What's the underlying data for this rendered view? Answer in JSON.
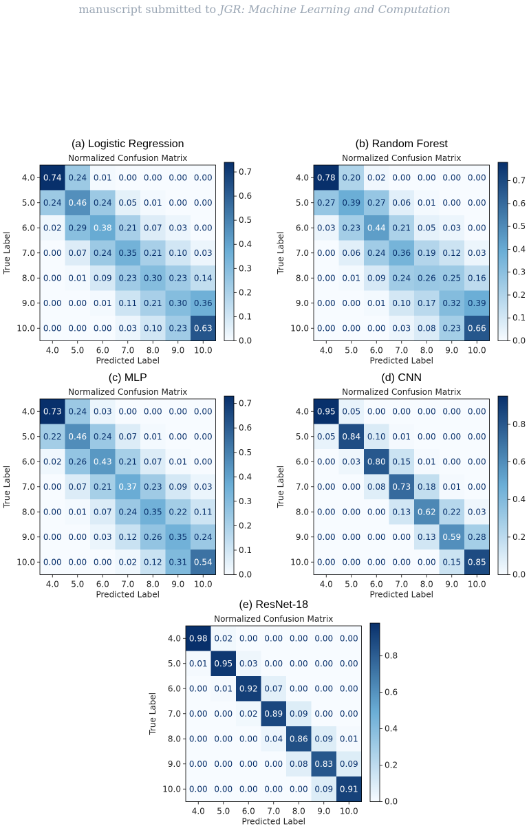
{
  "header": {
    "prefix": "manuscript submitted to",
    "journal": "JGR: Machine Learning and Computation"
  },
  "colormap": {
    "low": "#f7fbff",
    "mid": "#6baed6",
    "high": "#08306b"
  },
  "chart_data": [
    {
      "type": "heatmap",
      "panel_title": "(a) Logistic Regression",
      "title": "Normalized Confusion Matrix",
      "xlabel": "Predicted Label",
      "ylabel": "True Label",
      "x_categories": [
        "4.0",
        "5.0",
        "6.0",
        "7.0",
        "8.0",
        "9.0",
        "10.0"
      ],
      "y_categories": [
        "4.0",
        "5.0",
        "6.0",
        "7.0",
        "8.0",
        "9.0",
        "10.0"
      ],
      "values": [
        [
          0.74,
          0.24,
          0.01,
          0.0,
          0.0,
          0.0,
          0.0
        ],
        [
          0.24,
          0.46,
          0.24,
          0.05,
          0.01,
          0.0,
          0.0
        ],
        [
          0.02,
          0.29,
          0.38,
          0.21,
          0.07,
          0.03,
          0.0
        ],
        [
          0.0,
          0.07,
          0.24,
          0.35,
          0.21,
          0.1,
          0.03
        ],
        [
          0.0,
          0.01,
          0.09,
          0.23,
          0.3,
          0.23,
          0.14
        ],
        [
          0.0,
          0.0,
          0.01,
          0.11,
          0.21,
          0.3,
          0.36
        ],
        [
          0.0,
          0.0,
          0.0,
          0.03,
          0.1,
          0.23,
          0.63
        ]
      ],
      "colorbar": {
        "min": 0,
        "max": 0.74,
        "ticks": [
          "0.0",
          "0.1",
          "0.2",
          "0.3",
          "0.4",
          "0.5",
          "0.6",
          "0.7"
        ]
      }
    },
    {
      "type": "heatmap",
      "panel_title": "(b) Random Forest",
      "title": "Normalized Confusion Matrix",
      "xlabel": "Predicted Label",
      "ylabel": "True Label",
      "x_categories": [
        "4.0",
        "5.0",
        "6.0",
        "7.0",
        "8.0",
        "9.0",
        "10.0"
      ],
      "y_categories": [
        "4.0",
        "5.0",
        "6.0",
        "7.0",
        "8.0",
        "9.0",
        "10.0"
      ],
      "values": [
        [
          0.78,
          0.2,
          0.02,
          0.0,
          0.0,
          0.0,
          0.0
        ],
        [
          0.27,
          0.39,
          0.27,
          0.06,
          0.01,
          0.0,
          0.0
        ],
        [
          0.03,
          0.23,
          0.44,
          0.21,
          0.05,
          0.03,
          0.0
        ],
        [
          0.0,
          0.06,
          0.24,
          0.36,
          0.19,
          0.12,
          0.03
        ],
        [
          0.0,
          0.01,
          0.09,
          0.24,
          0.26,
          0.25,
          0.16
        ],
        [
          0.0,
          0.0,
          0.01,
          0.1,
          0.17,
          0.32,
          0.39
        ],
        [
          0.0,
          0.0,
          0.0,
          0.03,
          0.08,
          0.23,
          0.66
        ]
      ],
      "colorbar": {
        "min": 0,
        "max": 0.78,
        "ticks": [
          "0.0",
          "0.1",
          "0.2",
          "0.3",
          "0.4",
          "0.5",
          "0.6",
          "0.7"
        ]
      }
    },
    {
      "type": "heatmap",
      "panel_title": "(c) MLP",
      "title": "Normalized Confusion Matrix",
      "xlabel": "Predicted Label",
      "ylabel": "True Label",
      "x_categories": [
        "4.0",
        "5.0",
        "6.0",
        "7.0",
        "8.0",
        "9.0",
        "10.0"
      ],
      "y_categories": [
        "4.0",
        "5.0",
        "6.0",
        "7.0",
        "8.0",
        "9.0",
        "10.0"
      ],
      "values": [
        [
          0.73,
          0.24,
          0.03,
          0.0,
          0.0,
          0.0,
          0.0
        ],
        [
          0.22,
          0.46,
          0.24,
          0.07,
          0.01,
          0.0,
          0.0
        ],
        [
          0.02,
          0.26,
          0.43,
          0.21,
          0.07,
          0.01,
          0.0
        ],
        [
          0.0,
          0.07,
          0.21,
          0.37,
          0.23,
          0.09,
          0.03
        ],
        [
          0.0,
          0.01,
          0.07,
          0.24,
          0.35,
          0.22,
          0.11
        ],
        [
          0.0,
          0.0,
          0.03,
          0.12,
          0.26,
          0.35,
          0.24
        ],
        [
          0.0,
          0.0,
          0.0,
          0.02,
          0.12,
          0.31,
          0.54
        ]
      ],
      "colorbar": {
        "min": 0,
        "max": 0.73,
        "ticks": [
          "0.0",
          "0.1",
          "0.2",
          "0.3",
          "0.4",
          "0.5",
          "0.6",
          "0.7"
        ]
      }
    },
    {
      "type": "heatmap",
      "panel_title": "(d) CNN",
      "title": "Normalized Confusion Matrix",
      "xlabel": "Predicted Label",
      "ylabel": "True Label",
      "x_categories": [
        "4.0",
        "5.0",
        "6.0",
        "7.0",
        "8.0",
        "9.0",
        "10.0"
      ],
      "y_categories": [
        "4.0",
        "5.0",
        "6.0",
        "7.0",
        "8.0",
        "9.0",
        "10.0"
      ],
      "values": [
        [
          0.95,
          0.05,
          0.0,
          0.0,
          0.0,
          0.0,
          0.0
        ],
        [
          0.05,
          0.84,
          0.1,
          0.01,
          0.0,
          0.0,
          0.0
        ],
        [
          0.0,
          0.03,
          0.8,
          0.15,
          0.01,
          0.0,
          0.0
        ],
        [
          0.0,
          0.0,
          0.08,
          0.73,
          0.18,
          0.01,
          0.0
        ],
        [
          0.0,
          0.0,
          0.0,
          0.13,
          0.62,
          0.22,
          0.03
        ],
        [
          0.0,
          0.0,
          0.0,
          0.0,
          0.13,
          0.59,
          0.28
        ],
        [
          0.0,
          0.0,
          0.0,
          0.0,
          0.0,
          0.15,
          0.85
        ]
      ],
      "colorbar": {
        "min": 0,
        "max": 0.95,
        "ticks": [
          "0.0",
          "0.2",
          "0.4",
          "0.6",
          "0.8"
        ]
      }
    },
    {
      "type": "heatmap",
      "panel_title": "(e) ResNet-18",
      "title": "Normalized Confusion Matrix",
      "xlabel": "Predicted Label",
      "ylabel": "True Label",
      "x_categories": [
        "4.0",
        "5.0",
        "6.0",
        "7.0",
        "8.0",
        "9.0",
        "10.0"
      ],
      "y_categories": [
        "4.0",
        "5.0",
        "6.0",
        "7.0",
        "8.0",
        "9.0",
        "10.0"
      ],
      "values": [
        [
          0.98,
          0.02,
          0.0,
          0.0,
          0.0,
          0.0,
          0.0
        ],
        [
          0.01,
          0.95,
          0.03,
          0.0,
          0.0,
          0.0,
          0.0
        ],
        [
          0.0,
          0.01,
          0.92,
          0.07,
          0.0,
          0.0,
          0.0
        ],
        [
          0.0,
          0.0,
          0.02,
          0.89,
          0.09,
          0.0,
          0.0
        ],
        [
          0.0,
          0.0,
          0.0,
          0.04,
          0.86,
          0.09,
          0.01
        ],
        [
          0.0,
          0.0,
          0.0,
          0.0,
          0.08,
          0.83,
          0.09
        ],
        [
          0.0,
          0.0,
          0.0,
          0.0,
          0.0,
          0.09,
          0.91
        ]
      ],
      "colorbar": {
        "min": 0,
        "max": 0.98,
        "ticks": [
          "0.0",
          "0.2",
          "0.4",
          "0.6",
          "0.8"
        ]
      }
    }
  ]
}
